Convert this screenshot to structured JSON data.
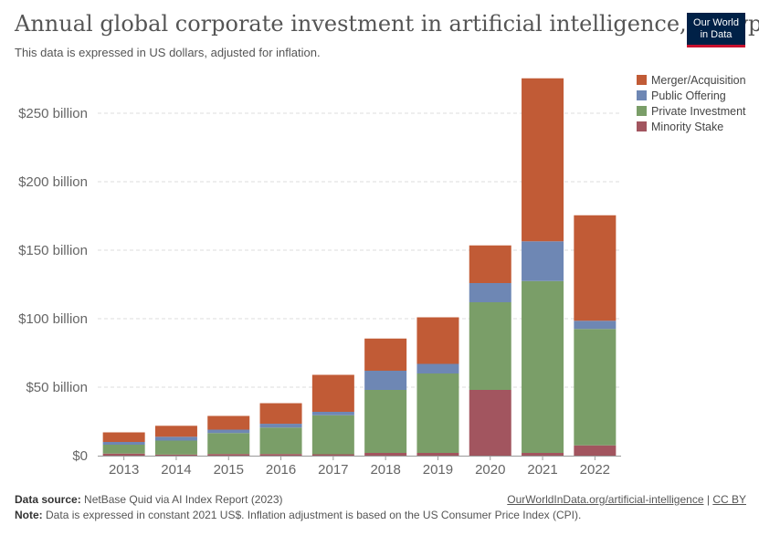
{
  "header": {
    "title": "Annual global corporate investment in artificial intelligence, by type",
    "subtitle": "This data is expressed in US dollars, adjusted for inflation.",
    "logo_line1": "Our World",
    "logo_line2": "in Data"
  },
  "footer": {
    "source_label": "Data source:",
    "source_text": "NetBase Quid via AI Index Report (2023)",
    "note_label": "Note:",
    "note_text": "Data is expressed in constant 2021 US$. Inflation adjustment is based on the US Consumer Price Index (CPI).",
    "link_text": "OurWorldInData.org/artificial-intelligence",
    "separator": "|",
    "license": "CC BY"
  },
  "chart_data": {
    "type": "bar",
    "stacked": true,
    "categories": [
      "2013",
      "2014",
      "2015",
      "2016",
      "2017",
      "2018",
      "2019",
      "2020",
      "2021",
      "2022"
    ],
    "series": [
      {
        "name": "Minority Stake",
        "color": "#a2555f",
        "values": [
          1.5,
          0.8,
          1.2,
          1.2,
          1.0,
          2.0,
          2.0,
          48.0,
          2.0,
          7.5
        ]
      },
      {
        "name": "Private Investment",
        "color": "#7a9e68",
        "values": [
          6.5,
          10.2,
          15.3,
          19.3,
          28.5,
          46.0,
          58.0,
          64.0,
          125.5,
          85.0
        ]
      },
      {
        "name": "Public Offering",
        "color": "#6e87b4",
        "values": [
          2.0,
          2.8,
          2.5,
          2.8,
          2.5,
          14.0,
          7.0,
          14.0,
          29.0,
          6.0
        ]
      },
      {
        "name": "Merger/Acquisition",
        "color": "#c15b36",
        "values": [
          7.0,
          8.0,
          10.0,
          15.0,
          27.0,
          23.5,
          34.0,
          27.5,
          119.0,
          77.0
        ]
      }
    ],
    "legend_order": [
      "Merger/Acquisition",
      "Public Offering",
      "Private Investment",
      "Minority Stake"
    ],
    "legend_position": "top-right",
    "yticks": [
      0,
      50,
      100,
      150,
      200,
      250
    ],
    "ytick_labels": [
      "$0",
      "$50 billion",
      "$100 billion",
      "$150 billion",
      "$200 billion",
      "$250 billion"
    ],
    "ylim": [
      0,
      280
    ],
    "grid": true
  }
}
